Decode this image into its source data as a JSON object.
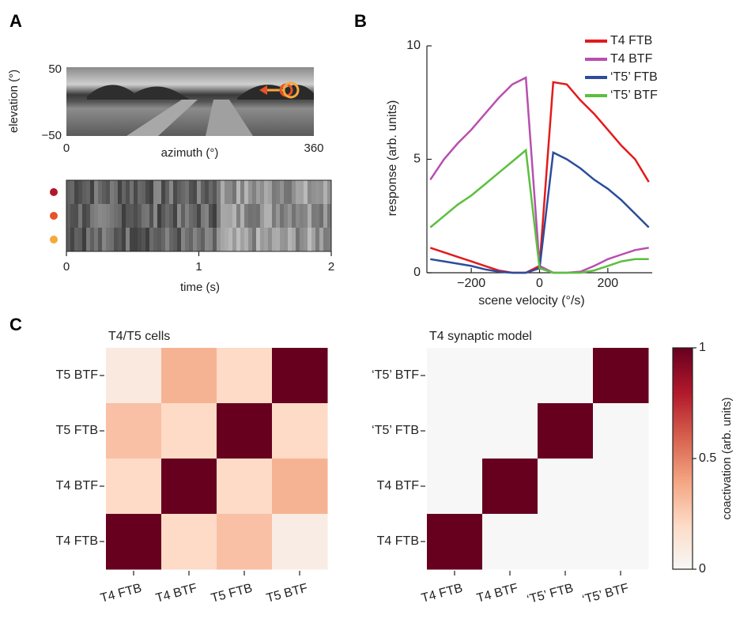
{
  "chart_data": [
    {
      "type": "image",
      "panel": "A",
      "xlabel": "azimuth (°)",
      "ylabel": "elevation (°)",
      "xlim": [
        0,
        360
      ],
      "xticks": [
        0,
        360
      ],
      "ylim": [
        -50,
        50
      ],
      "yticks": [
        {
          "value": -50,
          "label": "−50"
        },
        50
      ]
    },
    {
      "type": "raster",
      "xlabel": "time (s)",
      "xlim": [
        0,
        2
      ],
      "xticks": [
        0,
        1,
        2
      ],
      "row_colors": [
        "#b2182b",
        "#e8532a",
        "#f5a93c"
      ]
    },
    {
      "type": "line",
      "panel": "B",
      "xlabel": "scene velocity (°/s)",
      "ylabel": "response (arb. units)",
      "xlim": [
        -330,
        330
      ],
      "xticks": [
        {
          "value": -200,
          "label": "−200"
        },
        0,
        200
      ],
      "ylim": [
        0,
        10
      ],
      "yticks": [
        0,
        5,
        10
      ],
      "legend": "top-right",
      "x": [
        -320,
        -280,
        -240,
        -200,
        -160,
        -120,
        -80,
        -40,
        0,
        40,
        80,
        120,
        160,
        200,
        240,
        280,
        320
      ],
      "series": [
        {
          "name": "T4 FTB",
          "color": "#e41a1c",
          "values": [
            1.1,
            0.9,
            0.7,
            0.5,
            0.3,
            0.1,
            0,
            0,
            0.3,
            8.4,
            8.3,
            7.6,
            7.0,
            6.3,
            5.6,
            5.0,
            4.0
          ]
        },
        {
          "name": "T4 BTF",
          "color": "#b84fb0",
          "values": [
            4.1,
            5.0,
            5.7,
            6.3,
            7.0,
            7.7,
            8.3,
            8.6,
            0.3,
            0,
            0,
            0.05,
            0.3,
            0.6,
            0.8,
            1.0,
            1.1
          ]
        },
        {
          "name": "‘T5’ FTB",
          "color": "#2c4d9c",
          "values": [
            0.6,
            0.5,
            0.4,
            0.3,
            0.15,
            0.05,
            0,
            0,
            0.2,
            5.3,
            5.0,
            4.6,
            4.1,
            3.7,
            3.2,
            2.6,
            2.0
          ]
        },
        {
          "name": "‘T5’ BTF",
          "color": "#5cbf3f",
          "values": [
            2.0,
            2.5,
            3.0,
            3.4,
            3.9,
            4.4,
            4.9,
            5.4,
            0.2,
            0,
            0,
            0,
            0.1,
            0.3,
            0.5,
            0.6,
            0.6
          ]
        }
      ]
    },
    {
      "type": "heatmap",
      "panel": "C",
      "title": "T4/T5 cells",
      "rows": [
        "T5 BTF",
        "T5 FTB",
        "T4 BTF",
        "T4 FTB"
      ],
      "columns": [
        "T4 FTB",
        "T4 BTF",
        "T5 FTB",
        "T5 BTF"
      ],
      "values": [
        [
          0.1,
          0.35,
          0.2,
          1
        ],
        [
          0.3,
          0.2,
          1,
          0.2
        ],
        [
          0.2,
          1,
          0.2,
          0.35
        ],
        [
          1,
          0.2,
          0.3,
          0.08
        ]
      ],
      "zlim": [
        0,
        1
      ],
      "colormap": [
        "#f7f7f7",
        "#fddbc7",
        "#f4a582",
        "#d6604d",
        "#b2182b",
        "#67001f"
      ]
    },
    {
      "type": "heatmap",
      "title": "T4 synaptic model",
      "rows": [
        "‘T5’ BTF",
        "‘T5’ FTB",
        "T4 BTF",
        "T4 FTB"
      ],
      "columns": [
        "T4 FTB",
        "T4 BTF",
        "‘T5’ FTB",
        "‘T5’ BTF"
      ],
      "values": [
        [
          0,
          0,
          0,
          1
        ],
        [
          0,
          0,
          1,
          0
        ],
        [
          0,
          1,
          0,
          0
        ],
        [
          1,
          0,
          0,
          0
        ]
      ],
      "zlim": [
        0,
        1
      ],
      "colormap": [
        "#f7f7f7",
        "#fddbc7",
        "#f4a582",
        "#d6604d",
        "#b2182b",
        "#67001f"
      ],
      "colorbar": {
        "label": "coactivation (arb. units)",
        "ticks": [
          0,
          0.5,
          1
        ]
      }
    }
  ]
}
